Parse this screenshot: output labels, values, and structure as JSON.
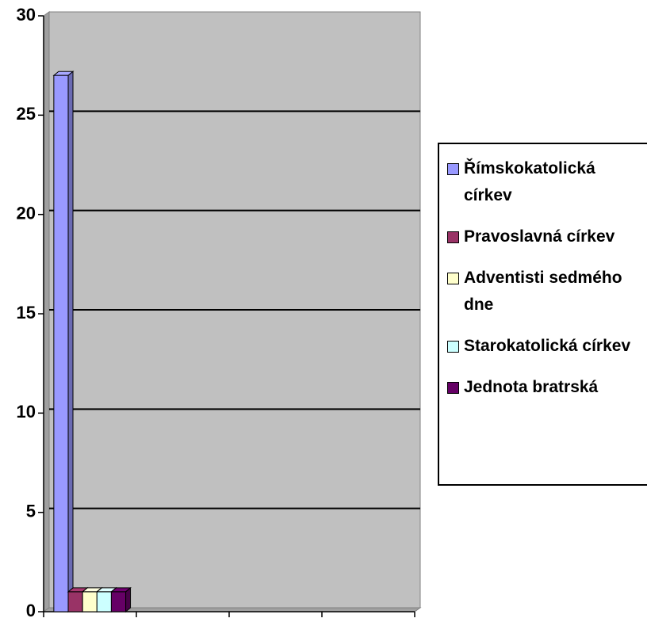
{
  "chart_data": {
    "type": "bar3d",
    "categories": [
      null,
      null,
      null,
      null
    ],
    "series": [
      {
        "name": "Římskokatolická církev",
        "color": "#9999ff",
        "values": [
          27,
          null,
          null,
          null
        ]
      },
      {
        "name": "Pravoslavná církev",
        "color": "#993366",
        "values": [
          1,
          null,
          null,
          null
        ]
      },
      {
        "name": "Adventisti sedmého dne",
        "color": "#ffffcc",
        "values": [
          1,
          null,
          null,
          null
        ]
      },
      {
        "name": "Starokatolická církev",
        "color": "#ccffff",
        "values": [
          1,
          null,
          null,
          null
        ]
      },
      {
        "name": "Jednota bratrská",
        "color": "#660066",
        "values": [
          1,
          null,
          null,
          null
        ]
      }
    ],
    "ylim": [
      0,
      30
    ],
    "yticks": [
      0,
      5,
      10,
      15,
      20,
      25,
      30
    ],
    "grid": true,
    "legend": "right"
  }
}
